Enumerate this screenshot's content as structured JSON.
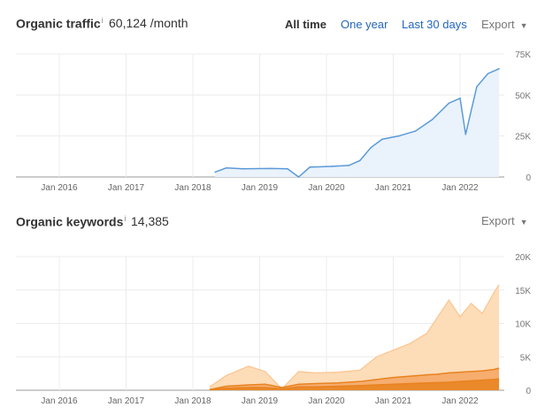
{
  "traffic": {
    "title": "Organic traffic",
    "info": "i",
    "value": "60,124 /month",
    "tabs": [
      {
        "label": "All time",
        "active": true
      },
      {
        "label": "One year",
        "active": false
      },
      {
        "label": "Last 30 days",
        "active": false
      }
    ],
    "export_label": "Export",
    "export_caret": "▼"
  },
  "keywords": {
    "title": "Organic keywords",
    "info": "i",
    "value": "14,385",
    "export_label": "Export",
    "export_caret": "▼"
  },
  "colors": {
    "traffic_line": "#5b9bd9",
    "traffic_fill": "#eaf2fb",
    "keywords_light": "#fddcb8",
    "keywords_light_line": "#fcc48e",
    "keywords_mid": "#f5a560",
    "keywords_dark_line": "#e8821f",
    "grid": "#ececec",
    "axis": "#999999"
  },
  "chart_data": [
    {
      "type": "line",
      "name": "organic-traffic",
      "x_ticks": [
        "Jan 2016",
        "Jan 2017",
        "Jan 2018",
        "Jan 2019",
        "Jan 2020",
        "Jan 2021",
        "Jan 2022"
      ],
      "y_ticks": [
        "75K",
        "50K",
        "25K",
        "0"
      ],
      "ylim": [
        0,
        75000
      ],
      "x": [
        "2018-05",
        "2018-07",
        "2018-10",
        "2019-03",
        "2019-06",
        "2019-08",
        "2019-10",
        "2020-02",
        "2020-05",
        "2020-07",
        "2020-09",
        "2020-11",
        "2021-02",
        "2021-05",
        "2021-08",
        "2021-11",
        "2022-01",
        "2022-02",
        "2022-04",
        "2022-06",
        "2022-08"
      ],
      "values": [
        3000,
        5500,
        5000,
        5200,
        5000,
        0,
        6000,
        6500,
        7000,
        10000,
        18000,
        23000,
        25000,
        28000,
        35000,
        45000,
        48000,
        26000,
        55000,
        63000,
        66000
      ]
    },
    {
      "type": "area",
      "name": "organic-keywords",
      "x_ticks": [
        "Jan 2016",
        "Jan 2017",
        "Jan 2018",
        "Jan 2019",
        "Jan 2020",
        "Jan 2021",
        "Jan 2022"
      ],
      "y_ticks": [
        "20K",
        "15K",
        "10K",
        "5K",
        "0"
      ],
      "ylim": [
        0,
        20000
      ],
      "x": [
        "2018-04",
        "2018-07",
        "2018-11",
        "2019-02",
        "2019-05",
        "2019-08",
        "2019-11",
        "2020-03",
        "2020-07",
        "2020-10",
        "2021-01",
        "2021-04",
        "2021-07",
        "2021-09",
        "2021-11",
        "2022-01",
        "2022-03",
        "2022-05",
        "2022-07",
        "2022-08"
      ],
      "series": [
        {
          "values": [
            500,
            2200,
            3600,
            2800,
            200,
            2800,
            2600,
            2700,
            3000,
            5000,
            6000,
            7000,
            8500,
            11000,
            13500,
            11000,
            13000,
            11500,
            14500,
            15800
          ]
        },
        {
          "values": [
            100,
            600,
            800,
            900,
            400,
            900,
            1000,
            1100,
            1300,
            1600,
            1900,
            2100,
            2300,
            2400,
            2600,
            2700,
            2800,
            2900,
            3100,
            3300
          ]
        },
        {
          "values": [
            50,
            300,
            400,
            400,
            200,
            500,
            500,
            600,
            700,
            800,
            900,
            1000,
            1100,
            1150,
            1200,
            1300,
            1400,
            1500,
            1600,
            1700
          ]
        }
      ]
    }
  ]
}
